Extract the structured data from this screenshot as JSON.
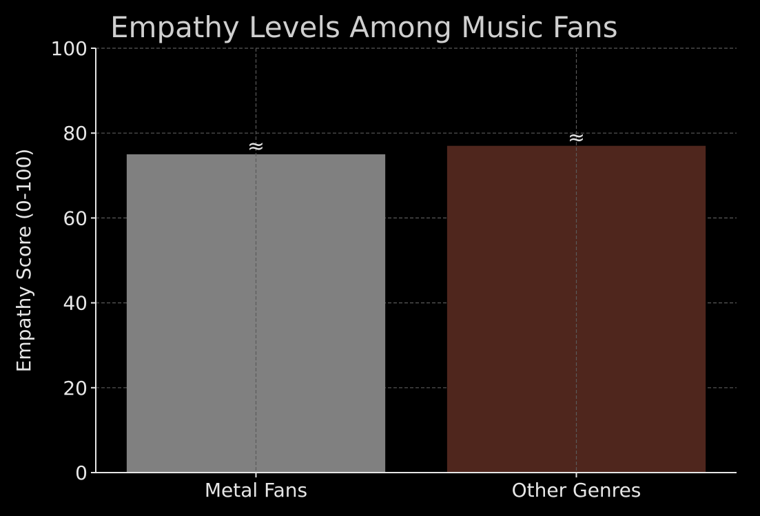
{
  "chart_data": {
    "type": "bar",
    "title": "Empathy Levels Among Music Fans",
    "xlabel": "",
    "ylabel": "Empathy Score (0-100)",
    "categories": [
      "Metal Fans",
      "Other Genres"
    ],
    "values": [
      75,
      77
    ],
    "bar_colors": [
      "#808080",
      "#4f261d"
    ],
    "annotations": [
      "≈",
      "≈"
    ],
    "ylim": [
      0,
      100
    ],
    "yticks": [
      "0",
      "20",
      "40",
      "60",
      "80",
      "100"
    ],
    "grid": true,
    "background": "#000000",
    "axis_color": "#e6e6e6",
    "grid_color": "#5a5a5a"
  }
}
